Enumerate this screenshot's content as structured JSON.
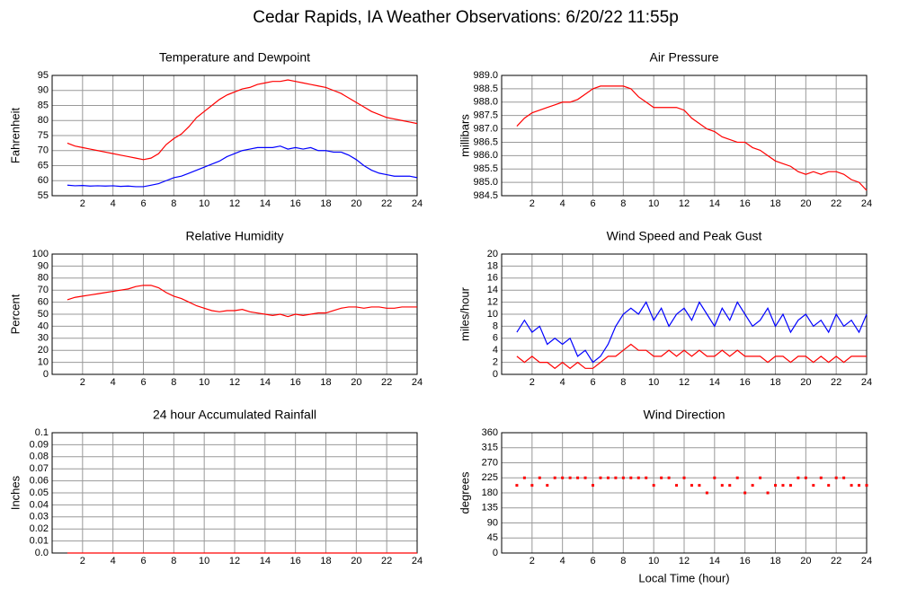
{
  "title": "Cedar Rapids, IA Weather Observations: 6/20/22 11:55p",
  "chart_data": [
    {
      "type": "line",
      "title": "Temperature and Dewpoint",
      "ylabel": "Fahrenheit",
      "grid": true,
      "xlim": [
        0,
        24
      ],
      "xticks": [
        2,
        4,
        6,
        8,
        10,
        12,
        14,
        16,
        18,
        20,
        22,
        24
      ],
      "ylim": [
        55,
        95
      ],
      "yticks": [
        55,
        60,
        65,
        70,
        75,
        80,
        85,
        90,
        95
      ],
      "x": [
        1,
        1.5,
        2,
        2.5,
        3,
        3.5,
        4,
        4.5,
        5,
        5.5,
        6,
        6.5,
        7,
        7.5,
        8,
        8.5,
        9,
        9.5,
        10,
        10.5,
        11,
        11.5,
        12,
        12.5,
        13,
        13.5,
        14,
        14.5,
        15,
        15.5,
        16,
        16.5,
        17,
        17.5,
        18,
        18.5,
        19,
        19.5,
        20,
        20.5,
        21,
        21.5,
        22,
        22.5,
        23,
        23.5,
        24
      ],
      "series": [
        {
          "color": "#ff0000",
          "values": [
            72.5,
            71.5,
            71,
            70.5,
            70,
            69.5,
            69,
            68.5,
            68,
            67.5,
            67,
            67.5,
            69,
            72,
            74,
            75.5,
            78,
            81,
            83,
            85,
            87,
            88.5,
            89.5,
            90.5,
            91,
            92,
            92.5,
            93,
            93,
            93.5,
            93,
            92.5,
            92,
            91.5,
            91,
            90,
            89,
            87.5,
            86,
            84.5,
            83,
            82,
            81,
            80.5,
            80,
            79.5,
            79
          ]
        },
        {
          "color": "#0000ff",
          "values": [
            58.5,
            58.3,
            58.4,
            58.2,
            58.3,
            58.2,
            58.3,
            58.1,
            58.2,
            58.0,
            58,
            58.5,
            59,
            60,
            61,
            61.5,
            62.5,
            63.5,
            64.5,
            65.5,
            66.5,
            68,
            69,
            70,
            70.5,
            71,
            71,
            71,
            71.5,
            70.5,
            71,
            70.5,
            71,
            70,
            70,
            69.5,
            69.5,
            68.5,
            67,
            65,
            63.5,
            62.5,
            62,
            61.5,
            61.5,
            61.5,
            61
          ]
        }
      ]
    },
    {
      "type": "line",
      "title": "Air Pressure",
      "ylabel": "millibars",
      "grid": true,
      "xlim": [
        0,
        24
      ],
      "xticks": [
        2,
        4,
        6,
        8,
        10,
        12,
        14,
        16,
        18,
        20,
        22,
        24
      ],
      "ylim": [
        984.5,
        989
      ],
      "yticks": [
        984.5,
        {
          "value": 985,
          "label": "985.0"
        },
        985.5,
        {
          "value": 986,
          "label": "986.0"
        },
        986.5,
        {
          "value": 987,
          "label": "987.0"
        },
        987.5,
        {
          "value": 988,
          "label": "988.0"
        },
        988.5,
        {
          "value": 989,
          "label": "989.0"
        }
      ],
      "x": [
        1,
        1.5,
        2,
        2.5,
        3,
        3.5,
        4,
        4.5,
        5,
        5.5,
        6,
        6.5,
        7,
        7.5,
        8,
        8.5,
        9,
        9.5,
        10,
        10.5,
        11,
        11.5,
        12,
        12.5,
        13,
        13.5,
        14,
        14.5,
        15,
        15.5,
        16,
        16.5,
        17,
        17.5,
        18,
        18.5,
        19,
        19.5,
        20,
        20.5,
        21,
        21.5,
        22,
        22.5,
        23,
        23.5,
        24
      ],
      "series": [
        {
          "color": "#ff0000",
          "values": [
            987.1,
            987.4,
            987.6,
            987.7,
            987.8,
            987.9,
            988.0,
            988.0,
            988.1,
            988.3,
            988.5,
            988.6,
            988.6,
            988.6,
            988.6,
            988.5,
            988.2,
            988.0,
            987.8,
            987.8,
            987.8,
            987.8,
            987.7,
            987.4,
            987.2,
            987.0,
            986.9,
            986.7,
            986.6,
            986.5,
            986.5,
            986.3,
            986.2,
            986.0,
            985.8,
            985.7,
            985.6,
            985.4,
            985.3,
            985.4,
            985.3,
            985.4,
            985.4,
            985.3,
            985.1,
            985.0,
            984.7
          ]
        }
      ]
    },
    {
      "type": "line",
      "title": "Relative Humidity",
      "ylabel": "Percent",
      "grid": true,
      "xlim": [
        0,
        24
      ],
      "xticks": [
        2,
        4,
        6,
        8,
        10,
        12,
        14,
        16,
        18,
        20,
        22,
        24
      ],
      "ylim": [
        0,
        100
      ],
      "yticks": [
        0,
        10,
        20,
        30,
        40,
        50,
        60,
        70,
        80,
        90,
        100
      ],
      "x": [
        1,
        1.5,
        2,
        2.5,
        3,
        3.5,
        4,
        4.5,
        5,
        5.5,
        6,
        6.5,
        7,
        7.5,
        8,
        8.5,
        9,
        9.5,
        10,
        10.5,
        11,
        11.5,
        12,
        12.5,
        13,
        13.5,
        14,
        14.5,
        15,
        15.5,
        16,
        16.5,
        17,
        17.5,
        18,
        18.5,
        19,
        19.5,
        20,
        20.5,
        21,
        21.5,
        22,
        22.5,
        23,
        23.5,
        24
      ],
      "series": [
        {
          "color": "#ff0000",
          "values": [
            62,
            64,
            65,
            66,
            67,
            68,
            69,
            70,
            71,
            73,
            74,
            74,
            72,
            68,
            65,
            63,
            60,
            57,
            55,
            53,
            52,
            53,
            53,
            54,
            52,
            51,
            50,
            49,
            50,
            48,
            50,
            49,
            50,
            51,
            51,
            53,
            55,
            56,
            56,
            55,
            56,
            56,
            55,
            55,
            56,
            56,
            56
          ]
        }
      ]
    },
    {
      "type": "line",
      "title": "Wind Speed and Peak Gust",
      "ylabel": "miles/hour",
      "grid": true,
      "xlim": [
        0,
        24
      ],
      "xticks": [
        2,
        4,
        6,
        8,
        10,
        12,
        14,
        16,
        18,
        20,
        22,
        24
      ],
      "ylim": [
        0,
        20
      ],
      "yticks": [
        0,
        2,
        4,
        6,
        8,
        10,
        12,
        14,
        16,
        18,
        20
      ],
      "x": [
        1,
        1.5,
        2,
        2.5,
        3,
        3.5,
        4,
        4.5,
        5,
        5.5,
        6,
        6.5,
        7,
        7.5,
        8,
        8.5,
        9,
        9.5,
        10,
        10.5,
        11,
        11.5,
        12,
        12.5,
        13,
        13.5,
        14,
        14.5,
        15,
        15.5,
        16,
        16.5,
        17,
        17.5,
        18,
        18.5,
        19,
        19.5,
        20,
        20.5,
        21,
        21.5,
        22,
        22.5,
        23,
        23.5,
        24
      ],
      "series": [
        {
          "color": "#0000ff",
          "values": [
            7,
            9,
            7,
            8,
            5,
            6,
            5,
            6,
            3,
            4,
            2,
            3,
            5,
            8,
            10,
            11,
            10,
            12,
            9,
            11,
            8,
            10,
            11,
            9,
            12,
            10,
            8,
            11,
            9,
            12,
            10,
            8,
            9,
            11,
            8,
            10,
            7,
            9,
            10,
            8,
            9,
            7,
            10,
            8,
            9,
            7,
            10
          ]
        },
        {
          "color": "#ff0000",
          "values": [
            3,
            2,
            3,
            2,
            2,
            1,
            2,
            1,
            2,
            1,
            1,
            2,
            3,
            3,
            4,
            5,
            4,
            4,
            3,
            3,
            4,
            3,
            4,
            3,
            4,
            3,
            3,
            4,
            3,
            4,
            3,
            3,
            3,
            2,
            3,
            3,
            2,
            3,
            3,
            2,
            3,
            2,
            3,
            2,
            3,
            3,
            3
          ]
        }
      ]
    },
    {
      "type": "line",
      "title": "24 hour Accumulated Rainfall",
      "ylabel": "Inches",
      "grid": true,
      "xlim": [
        0,
        24
      ],
      "xticks": [
        2,
        4,
        6,
        8,
        10,
        12,
        14,
        16,
        18,
        20,
        22,
        24
      ],
      "ylim": [
        0,
        0.1
      ],
      "yticks": [
        {
          "value": 0,
          "label": "0.0"
        },
        0.01,
        0.02,
        0.03,
        0.04,
        0.05,
        0.06,
        0.07,
        0.08,
        0.09,
        0.1
      ],
      "x": [
        1,
        24
      ],
      "series": [
        {
          "color": "#ff0000",
          "values": [
            0,
            0
          ]
        }
      ]
    },
    {
      "type": "scatter",
      "title": "Wind Direction",
      "ylabel": "degrees",
      "xlabel": "Local Time (hour)",
      "grid": true,
      "xlim": [
        0,
        24
      ],
      "xticks": [
        2,
        4,
        6,
        8,
        10,
        12,
        14,
        16,
        18,
        20,
        22,
        24
      ],
      "ylim": [
        0,
        360
      ],
      "yticks": [
        0,
        45,
        90,
        135,
        180,
        225,
        270,
        315,
        360
      ],
      "x": [
        1,
        1.5,
        2,
        2.5,
        3,
        3.5,
        4,
        4.5,
        5,
        5.5,
        6,
        6.5,
        7,
        7.5,
        8,
        8.5,
        9,
        9.5,
        10,
        10.5,
        11,
        11.5,
        12,
        12.5,
        13,
        13.5,
        14,
        14.5,
        15,
        15.5,
        16,
        16.5,
        17,
        17.5,
        18,
        18.5,
        19,
        19.5,
        20,
        20.5,
        21,
        21.5,
        22,
        22.5,
        23,
        23.5,
        24
      ],
      "color": "#ff0000",
      "values": [
        202.5,
        225,
        202.5,
        225,
        202.5,
        225,
        225,
        225,
        225,
        225,
        202.5,
        225,
        225,
        225,
        225,
        225,
        225,
        225,
        202.5,
        225,
        225,
        202.5,
        225,
        202.5,
        202.5,
        180,
        225,
        202.5,
        202.5,
        225,
        180,
        202.5,
        225,
        180,
        202.5,
        202.5,
        202.5,
        225,
        225,
        202.5,
        225,
        202.5,
        225,
        225,
        202.5,
        202.5,
        202.5
      ]
    }
  ]
}
